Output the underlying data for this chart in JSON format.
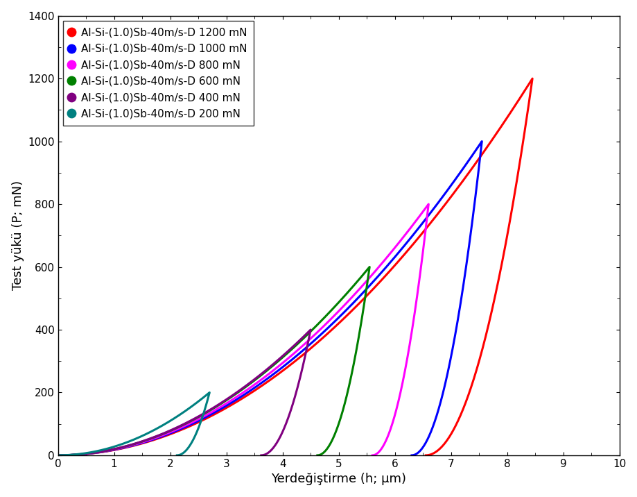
{
  "xlabel": "Yerdeğiştirme (h; μm)",
  "ylabel": "Test yükü (P; mN)",
  "xlim": [
    0,
    10
  ],
  "ylim": [
    0,
    1400
  ],
  "xticks": [
    0,
    1,
    2,
    3,
    4,
    5,
    6,
    7,
    8,
    9,
    10
  ],
  "yticks": [
    0,
    200,
    400,
    600,
    800,
    1000,
    1200,
    1400
  ],
  "legend_entries": [
    "Al-Si-(1.0)Sb-40m/s-D 1200 mN",
    "Al-Si-(1.0)Sb-40m/s-D 1000 mN",
    "Al-Si-(1.0)Sb-40m/s-D 800 mN",
    "Al-Si-(1.0)Sb-40m/s-D 600 mN",
    "Al-Si-(1.0)Sb-40m/s-D 400 mN",
    "Al-Si-(1.0)Sb-40m/s-D 200 mN"
  ],
  "colors": [
    "#ff0000",
    "#0000ff",
    "#ff00ff",
    "#008000",
    "#800080",
    "#008080"
  ],
  "curves": [
    {
      "color": "#ff0000",
      "max_load": 1200,
      "load_x_peak": 8.45,
      "unload_x_end": 6.55,
      "load_power": 2.0,
      "unload_power": 2.0
    },
    {
      "color": "#0000ff",
      "max_load": 1000,
      "load_x_peak": 7.55,
      "unload_x_end": 6.3,
      "load_power": 2.0,
      "unload_power": 2.0
    },
    {
      "color": "#ff00ff",
      "max_load": 800,
      "load_x_peak": 6.6,
      "unload_x_end": 5.6,
      "load_power": 2.0,
      "unload_power": 2.0
    },
    {
      "color": "#008000",
      "max_load": 600,
      "load_x_peak": 5.55,
      "unload_x_end": 4.62,
      "load_power": 2.0,
      "unload_power": 2.0
    },
    {
      "color": "#800080",
      "max_load": 400,
      "load_x_peak": 4.5,
      "unload_x_end": 3.62,
      "load_power": 2.0,
      "unload_power": 2.0
    },
    {
      "color": "#008080",
      "max_load": 200,
      "load_x_peak": 2.7,
      "unload_x_end": 2.12,
      "load_power": 2.0,
      "unload_power": 2.0
    }
  ],
  "linewidth": 2.2,
  "legend_fontsize": 11,
  "axis_fontsize": 13,
  "tick_fontsize": 11,
  "figsize": [
    9.2,
    7.16
  ],
  "dpi": 100
}
